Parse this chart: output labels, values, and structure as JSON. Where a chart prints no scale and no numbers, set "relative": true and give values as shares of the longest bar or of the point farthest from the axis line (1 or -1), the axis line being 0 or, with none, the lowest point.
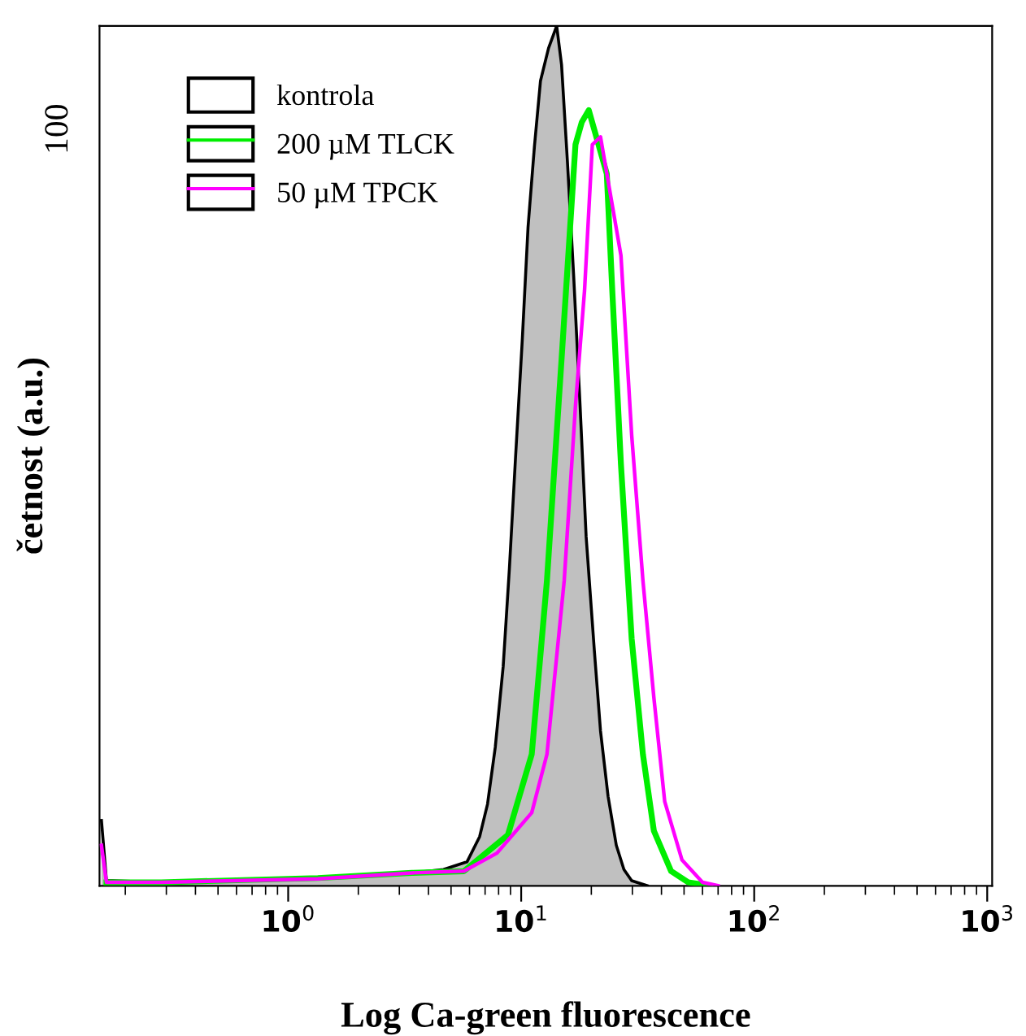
{
  "chart_data": {
    "type": "line",
    "relative": true,
    "xlabel": "Log Ca-green fluorescence",
    "ylabel": "četnost (a.u.)",
    "annotations": [
      "100"
    ],
    "log": "x",
    "xlim": [
      0.155,
      1050
    ],
    "xticks": [
      {
        "value": 1,
        "label": "10$^{0}$"
      },
      {
        "value": 10,
        "label": "10$^{1}$"
      },
      {
        "value": 100,
        "label": "10$^{2}$"
      },
      {
        "value": 1000,
        "label": "10$^{3}$"
      }
    ],
    "grid": false,
    "legend": "top left",
    "marker": "none",
    "series": [
      {
        "name": "kontrola",
        "type": "area",
        "color": "#c0c0c0",
        "x": [
          0.158,
          0.166,
          0.285,
          0.618,
          1.34,
          2.49,
          3.4,
          4.64,
          5.86,
          6.63,
          7.17,
          7.74,
          8.37,
          8.9,
          9.47,
          10.1,
          10.7,
          11.4,
          12.1,
          13.1,
          14.2,
          14.9,
          15.8,
          16.8,
          17.9,
          19.0,
          20.6,
          21.9,
          23.6,
          25.6,
          27.6,
          29.8,
          34.8
        ],
        "values": [
          0.076,
          0.006,
          0.004,
          0.006,
          0.008,
          0.013,
          0.015,
          0.019,
          0.028,
          0.057,
          0.095,
          0.161,
          0.255,
          0.369,
          0.501,
          0.633,
          0.766,
          0.86,
          0.936,
          0.974,
          1,
          0.955,
          0.841,
          0.709,
          0.558,
          0.406,
          0.274,
          0.18,
          0.104,
          0.047,
          0.019,
          0.006,
          0
        ]
      },
      {
        "name": "200 µM TLCK",
        "color": "#00ee00",
        "x": [
          0.166,
          0.285,
          1.34,
          3.4,
          5.68,
          8.77,
          11.1,
          12.9,
          14.9,
          17.1,
          18.2,
          19.5,
          23.3,
          24.6,
          26.8,
          29.8,
          33.3,
          37.1,
          44.0,
          52.1,
          64.8
        ],
        "values": [
          0.004,
          0.004,
          0.009,
          0.015,
          0.017,
          0.059,
          0.153,
          0.355,
          0.612,
          0.862,
          0.888,
          0.902,
          0.828,
          0.692,
          0.49,
          0.287,
          0.153,
          0.064,
          0.017,
          0.004,
          0
        ]
      },
      {
        "name": "50 µM TPCK",
        "color": "#ff00ff",
        "x": [
          0.158,
          0.166,
          0.285,
          1.34,
          3.4,
          5.68,
          7.87,
          11.1,
          12.9,
          15.3,
          17.1,
          18.7,
          20.2,
          21.9,
          26.8,
          29.8,
          33.3,
          37.1,
          41.3,
          49.0,
          60.0,
          70.0
        ],
        "values": [
          0.047,
          0.004,
          0.004,
          0.008,
          0.015,
          0.017,
          0.038,
          0.085,
          0.153,
          0.355,
          0.558,
          0.692,
          0.862,
          0.871,
          0.733,
          0.524,
          0.355,
          0.219,
          0.098,
          0.03,
          0.004,
          0
        ]
      }
    ]
  }
}
